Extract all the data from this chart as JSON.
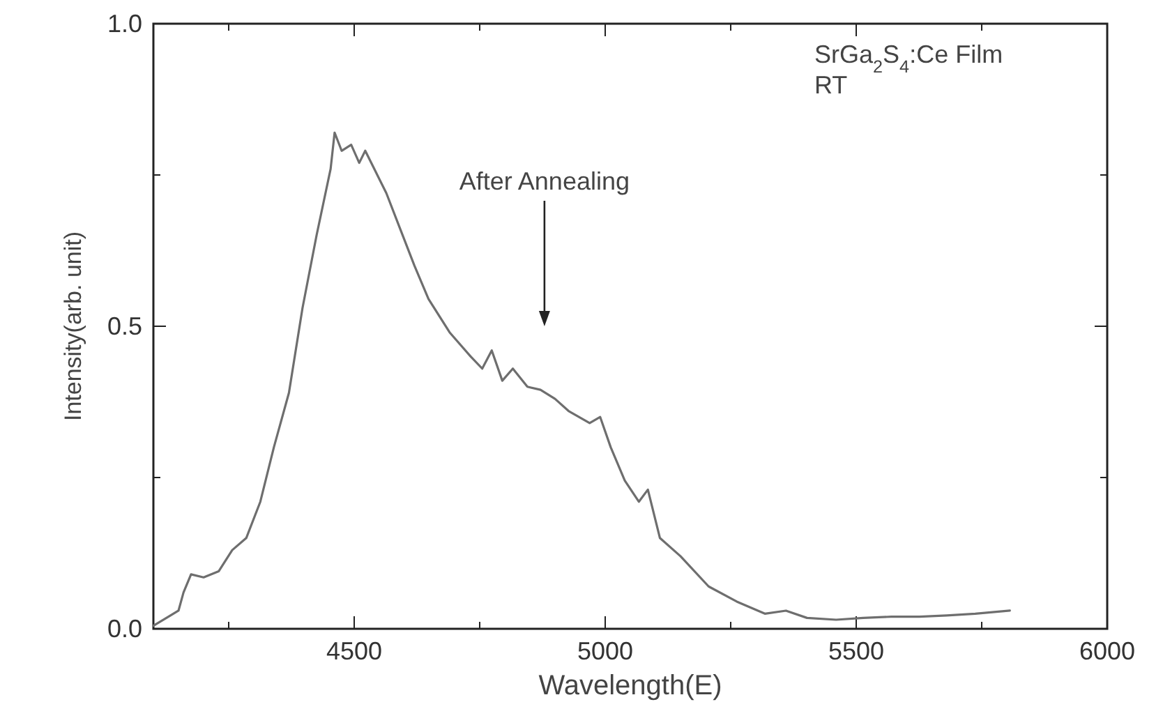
{
  "chart_data": {
    "type": "line",
    "xlabel": "Wavelength(E)",
    "ylabel": "Intensity(arb. unit)",
    "xlim": [
      4100,
      6000
    ],
    "ylim": [
      0,
      1
    ],
    "xticks": [
      {
        "value": 4250,
        "label": null
      },
      4500,
      {
        "value": 4750,
        "label": null
      },
      5000,
      {
        "value": 5250,
        "label": null
      },
      5500,
      {
        "value": 5750,
        "label": null
      },
      6000
    ],
    "yticks": [
      {
        "value": 0,
        "label": "0.0"
      },
      {
        "value": 0.25,
        "label": null
      },
      0.5,
      {
        "value": 0.75,
        "label": null
      },
      {
        "value": 1,
        "label": "1.0"
      }
    ],
    "annotations": [
      "SrGa$_{2}$S$_{4}$:Ce Film",
      "RT",
      "After Annealing"
    ],
    "marker": "none",
    "line_style": "solid",
    "series": [
      {
        "color": "#6e6e6e",
        "x": [
          4100,
          4130,
          4150,
          4160,
          4175,
          4200,
          4230,
          4257,
          4285,
          4313,
          4340,
          4370,
          4397,
          4425,
          4453,
          4461,
          4475,
          4494,
          4510,
          4522,
          4540,
          4564,
          4592,
          4620,
          4648,
          4690,
          4732,
          4755,
          4774,
          4795,
          4816,
          4845,
          4871,
          4900,
          4927,
          4969,
          4990,
          5011,
          5039,
          5067,
          5085,
          5109,
          5150,
          5206,
          5262,
          5318,
          5360,
          5402,
          5460,
          5514,
          5570,
          5626,
          5680,
          5737,
          5806
        ],
        "values": [
          0.005,
          0.02,
          0.03,
          0.06,
          0.09,
          0.085,
          0.095,
          0.13,
          0.15,
          0.21,
          0.3,
          0.39,
          0.53,
          0.65,
          0.76,
          0.82,
          0.79,
          0.8,
          0.77,
          0.79,
          0.76,
          0.72,
          0.66,
          0.6,
          0.545,
          0.49,
          0.45,
          0.43,
          0.46,
          0.41,
          0.43,
          0.4,
          0.395,
          0.38,
          0.36,
          0.34,
          0.35,
          0.3,
          0.245,
          0.21,
          0.23,
          0.15,
          0.12,
          0.07,
          0.045,
          0.025,
          0.03,
          0.018,
          0.015,
          0.018,
          0.02,
          0.02,
          0.022,
          0.025,
          0.03
        ]
      }
    ]
  }
}
